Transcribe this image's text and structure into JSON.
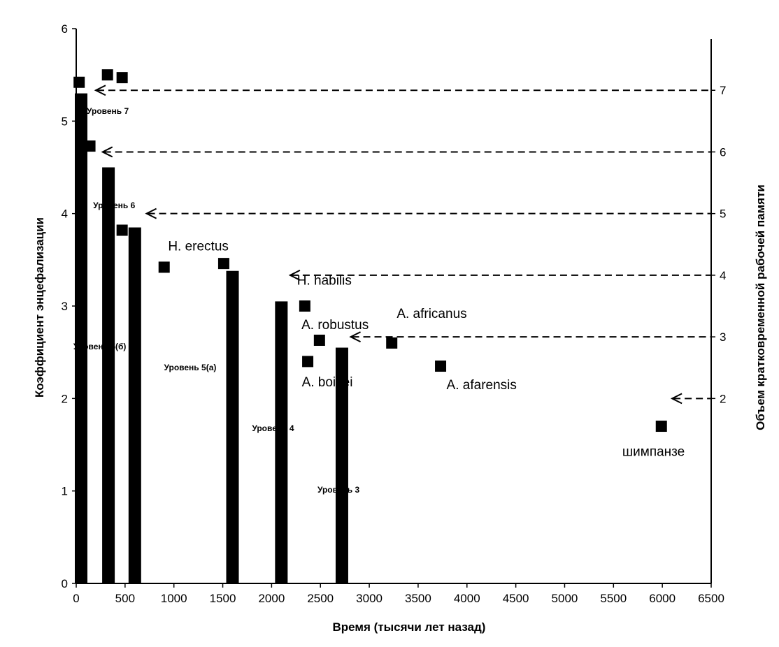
{
  "chart_data": {
    "type": "bar",
    "title": "",
    "xlabel": "Время (тысячи лет назад)",
    "ylabel": "Коэффициент энцефализации",
    "y2label": "Объем кратковременной рабочей памяти",
    "xlim": [
      0,
      6500
    ],
    "ylim": [
      0,
      6
    ],
    "y2lim": [
      -1,
      8
    ],
    "x_ticks": [
      "0",
      "500",
      "1000",
      "1500",
      "2000",
      "2500",
      "3000",
      "3500",
      "4000",
      "4500",
      "5000",
      "5500",
      "6000",
      "6500"
    ],
    "y_ticks": [
      "0",
      "1",
      "2",
      "3",
      "4",
      "5",
      "6"
    ],
    "y2_ticks": [
      "2",
      "3",
      "4",
      "5",
      "6",
      "7"
    ],
    "bars": [
      {
        "label": "Уровень 7",
        "x": 50,
        "value": 5.3
      },
      {
        "label": "Уровень 6",
        "x": 330,
        "value": 4.5
      },
      {
        "label": "Уровень 5(б)",
        "x": 600,
        "value": 3.85
      },
      {
        "label": "Уровень 5(а)",
        "x": 1600,
        "value": 3.38
      },
      {
        "label": "Уровень 4",
        "x": 2100,
        "value": 3.05
      },
      {
        "label": "Уровень 3",
        "x": 2720,
        "value": 2.55
      }
    ],
    "points": [
      {
        "x": 30,
        "y": 5.42
      },
      {
        "x": 320,
        "y": 5.5
      },
      {
        "x": 470,
        "y": 5.47
      },
      {
        "x": 140,
        "y": 4.73
      },
      {
        "x": 470,
        "y": 3.82
      },
      {
        "x": 900,
        "y": 3.42
      },
      {
        "x": 1510,
        "y": 3.46
      },
      {
        "x": 2340,
        "y": 3.0
      },
      {
        "x": 2490,
        "y": 2.63
      },
      {
        "x": 2370,
        "y": 2.4
      },
      {
        "x": 3230,
        "y": 2.6
      },
      {
        "x": 3730,
        "y": 2.35
      },
      {
        "x": 5990,
        "y": 1.7
      }
    ],
    "memory_levels": [
      {
        "memory": 7,
        "x_start": 200
      },
      {
        "memory": 6,
        "x_start": 270
      },
      {
        "memory": 5,
        "x_start": 720
      },
      {
        "memory": 4,
        "x_start": 2190
      },
      {
        "memory": 3,
        "x_start": 2810
      },
      {
        "memory": 2,
        "x_start": 6100
      }
    ],
    "annotations": [
      {
        "text": "H. erectus",
        "x": 1250,
        "y": 3.6
      },
      {
        "text": "H. habilis",
        "x": 2540,
        "y": 3.23
      },
      {
        "text": "A. robustus",
        "x": 2650,
        "y": 2.75
      },
      {
        "text": "A. africanus",
        "x": 3640,
        "y": 2.87
      },
      {
        "text": "A. boisei",
        "x": 2570,
        "y": 2.13
      },
      {
        "text": "A. afarensis",
        "x": 4150,
        "y": 2.1
      },
      {
        "text": "шимпанзе",
        "x": 5910,
        "y": 1.38
      }
    ]
  }
}
